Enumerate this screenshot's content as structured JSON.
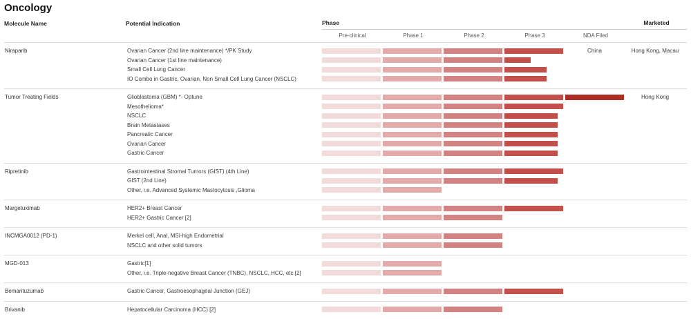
{
  "columns": {
    "molecule": "Molecule Name",
    "indication": "Potential Indication",
    "phase": "Phase",
    "marketed": "Marketed"
  },
  "colors": {
    "pre_clinical": "#f2dcdb",
    "phase_1": "#e2aaa8",
    "phase_2": "#d28280",
    "phase_3": "#c24f4a",
    "nda_filed": "#ab2d23"
  },
  "chart_data": {
    "type": "table",
    "title": "Oncology",
    "phase_columns": [
      "Pre-clinical",
      "Phase 1",
      "Phase 2",
      "Phase 3",
      "NDA Filed"
    ],
    "groups": [
      {
        "molecule": "Niraparib",
        "rows": [
          {
            "indication": "Ovarian Cancer (2nd line maintenance) */PK Study",
            "phase_progress": [
              1,
              1,
              1,
              1,
              0
            ],
            "nda_filed_text": "China",
            "marketed": "Hong Kong, Macau"
          },
          {
            "indication": "Ovarian Cancer (1st line maintenance)",
            "phase_progress": [
              1,
              1,
              1,
              0.45,
              0
            ]
          },
          {
            "indication": "Small Cell Lung Cancer",
            "phase_progress": [
              1,
              1,
              1,
              0.72,
              0
            ]
          },
          {
            "indication": "IO Combo in Gastric, Ovarian, Non Small Cell Lung Cancer (NSCLC)",
            "phase_progress": [
              1,
              1,
              1,
              0.72,
              0
            ]
          }
        ]
      },
      {
        "molecule": "Tumor Treating Fields",
        "rows": [
          {
            "indication": "Glioblastoma (GBM) *- Optune",
            "phase_progress": [
              1,
              1,
              1,
              1,
              1
            ],
            "marketed": "Hong Kong"
          },
          {
            "indication": "Mesothelioma*",
            "phase_progress": [
              1,
              1,
              1,
              1,
              0
            ]
          },
          {
            "indication": "NSCLC",
            "phase_progress": [
              1,
              1,
              1,
              0.9,
              0
            ]
          },
          {
            "indication": "Brain Metastases",
            "phase_progress": [
              1,
              1,
              1,
              0.9,
              0
            ]
          },
          {
            "indication": "Pancreatic Cancer",
            "phase_progress": [
              1,
              1,
              1,
              0.9,
              0
            ]
          },
          {
            "indication": "Ovarian Cancer",
            "phase_progress": [
              1,
              1,
              1,
              0.9,
              0
            ]
          },
          {
            "indication": "Gastric Cancer",
            "phase_progress": [
              1,
              1,
              1,
              0.9,
              0
            ]
          }
        ]
      },
      {
        "molecule": "Ripretinib",
        "rows": [
          {
            "indication": "Gastrointestinal Stromal Tumors (GIST) (4th Line)",
            "phase_progress": [
              1,
              1,
              1,
              1,
              0
            ]
          },
          {
            "indication": "GIST (2nd Line)",
            "phase_progress": [
              1,
              1,
              1,
              0.9,
              0
            ]
          },
          {
            "indication": "Other, i.e. Advanced Systemic Mastocytosis ,Glioma",
            "phase_progress": [
              1,
              1,
              0,
              0,
              0
            ]
          }
        ]
      },
      {
        "molecule": "Margetuximab",
        "rows": [
          {
            "indication": "HER2+ Breast Cancer",
            "phase_progress": [
              1,
              1,
              1,
              1,
              0
            ]
          },
          {
            "indication": "HER2+ Gastric Cancer [2]",
            "phase_progress": [
              1,
              1,
              1,
              0,
              0
            ]
          }
        ]
      },
      {
        "molecule": "INCMGA0012 (PD-1)",
        "rows": [
          {
            "indication": "Merkel cell, Anal, MSI-high Endometrial",
            "phase_progress": [
              1,
              1,
              1,
              0,
              0
            ]
          },
          {
            "indication": "NSCLC and other solid tumors",
            "phase_progress": [
              1,
              1,
              1,
              0,
              0
            ]
          }
        ]
      },
      {
        "molecule": "MGD-013",
        "rows": [
          {
            "indication": "Gastric[1]",
            "phase_progress": [
              1,
              1,
              0,
              0,
              0
            ]
          },
          {
            "indication": "Other, i.e. Triple-negative Breast Cancer (TNBC), NSCLC, HCC, etc.[2]",
            "phase_progress": [
              1,
              1,
              0,
              0,
              0
            ]
          }
        ]
      },
      {
        "molecule": "Bemarituzumab",
        "rows": [
          {
            "indication": "Gastric Cancer, Gastroesophageal Junction (GEJ)",
            "phase_progress": [
              1,
              1,
              1,
              1,
              0
            ]
          }
        ]
      },
      {
        "molecule": "Brivanib",
        "rows": [
          {
            "indication": "Hepatocellular Carcinoma (HCC) [2]",
            "phase_progress": [
              1,
              1,
              1,
              0,
              0
            ]
          }
        ]
      }
    ]
  }
}
